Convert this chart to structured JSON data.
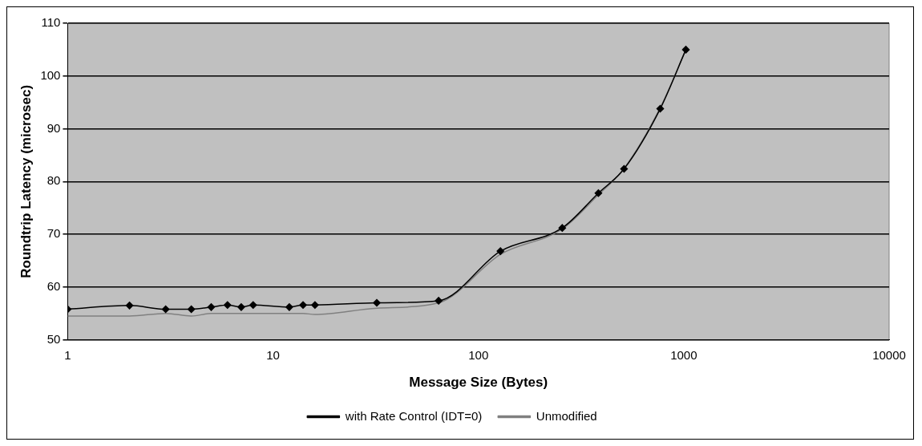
{
  "chart_data": {
    "type": "line",
    "xlabel": "Message Size (Bytes)",
    "ylabel": "Roundtrip Latency (microsec)",
    "log": "x",
    "xlim": [
      1,
      10000
    ],
    "xticks": [
      1,
      10,
      100,
      1000,
      10000
    ],
    "ylim": [
      50,
      110
    ],
    "yticks": [
      50,
      60,
      70,
      80,
      90,
      100,
      110
    ],
    "grid": "y",
    "legend": "bottom",
    "series": [
      {
        "name": "with Rate Control (IDT=0)",
        "color": "#000000",
        "marker": "diamond",
        "x": [
          1,
          2,
          3,
          4,
          5,
          6,
          7,
          8,
          12,
          14,
          16,
          32,
          64,
          128,
          256,
          384,
          512,
          768,
          1024
        ],
        "values": [
          55.8,
          56.5,
          55.8,
          55.8,
          56.2,
          56.6,
          56.2,
          56.6,
          56.2,
          56.6,
          56.6,
          57,
          57.4,
          66.8,
          71.2,
          77.8,
          82.4,
          93.8,
          105
        ]
      },
      {
        "name": "Unmodified",
        "color": "#808080",
        "marker": "none",
        "x": [
          1,
          2,
          3,
          4,
          5,
          6,
          7,
          8,
          12,
          14,
          16,
          32,
          64,
          128,
          256,
          384,
          512,
          768,
          1024
        ],
        "values": [
          54.5,
          54.5,
          55,
          54.5,
          55,
          55,
          55,
          55,
          55,
          55,
          54.8,
          56,
          57,
          66.2,
          71,
          77.5,
          82.5,
          94,
          105
        ]
      }
    ]
  }
}
